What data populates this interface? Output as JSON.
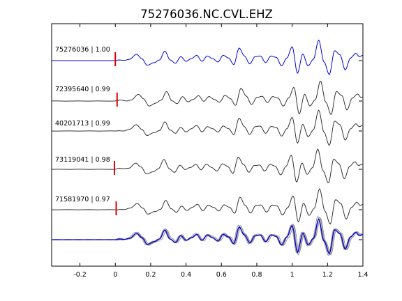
{
  "chart_data": {
    "type": "line",
    "title": "75276036.NC.CVL.EHZ",
    "xlabel": "",
    "ylabel": "",
    "xlim": [
      -0.36,
      1.4
    ],
    "x_ticks": [
      -0.2,
      0,
      0.2,
      0.4,
      0.6,
      0.8,
      1.0,
      1.2,
      1.4
    ],
    "x_tick_labels": [
      "-0.2",
      "0",
      "0.2",
      "0.4",
      "0.6",
      "0.8",
      "1",
      "1.2",
      "1.4"
    ],
    "grid": false,
    "colors": {
      "reference": "#0000dd",
      "trace": "#333333",
      "stack_gray": "#8a8a8a",
      "pick": "#dd0000",
      "axes": "#000000"
    },
    "traces": [
      {
        "label": "75276036 | 1.00",
        "color": "#0000dd",
        "pick": 0.0,
        "shift": 0.0,
        "amp": 1.0
      },
      {
        "label": "72395640 | 0.99",
        "color": "#333333",
        "pick": 0.01,
        "shift": 0.01,
        "amp": 1.0
      },
      {
        "label": "40201713 | 0.99",
        "color": "#333333",
        "pick": null,
        "shift": 0.0,
        "amp": 1.0
      },
      {
        "label": "73119041 | 0.98",
        "color": "#333333",
        "pick": -0.005,
        "shift": -0.005,
        "amp": 1.0
      },
      {
        "label": "71581970 | 0.97",
        "color": "#333333",
        "pick": 0.005,
        "shift": 0.005,
        "amp": 1.0
      }
    ],
    "waveform": {
      "note_units": "seconds vs relative amplitude",
      "t": [
        -0.36,
        -0.1,
        -0.02,
        0.0,
        0.02,
        0.05,
        0.08,
        0.12,
        0.15,
        0.18,
        0.22,
        0.25,
        0.28,
        0.31,
        0.34,
        0.37,
        0.4,
        0.43,
        0.46,
        0.49,
        0.52,
        0.55,
        0.58,
        0.61,
        0.64,
        0.67,
        0.7,
        0.73,
        0.76,
        0.79,
        0.82,
        0.85,
        0.88,
        0.91,
        0.94,
        0.97,
        1.0,
        1.03,
        1.06,
        1.09,
        1.12,
        1.15,
        1.18,
        1.21,
        1.24,
        1.27,
        1.3,
        1.33,
        1.36,
        1.38,
        1.4
      ],
      "amp": [
        0.0,
        0.0,
        0.0,
        0.0,
        0.05,
        0.02,
        0.1,
        0.48,
        0.15,
        -0.35,
        -0.15,
        0.05,
        0.72,
        0.05,
        -0.2,
        0.3,
        -0.05,
        0.15,
        0.4,
        -0.05,
        0.35,
        0.15,
        -0.1,
        0.4,
        0.2,
        -0.3,
        0.95,
        0.35,
        -0.25,
        0.3,
        0.35,
        -0.15,
        0.35,
        0.25,
        -0.4,
        0.2,
        1.05,
        -0.95,
        0.5,
        -0.4,
        0.1,
        1.55,
        -0.1,
        -1.05,
        0.75,
        0.45,
        -0.7,
        0.2,
        0.55,
        0.3,
        0.4
      ]
    },
    "stack_note": "bottom panel overlays all traces (gray) with the reference (blue)"
  }
}
